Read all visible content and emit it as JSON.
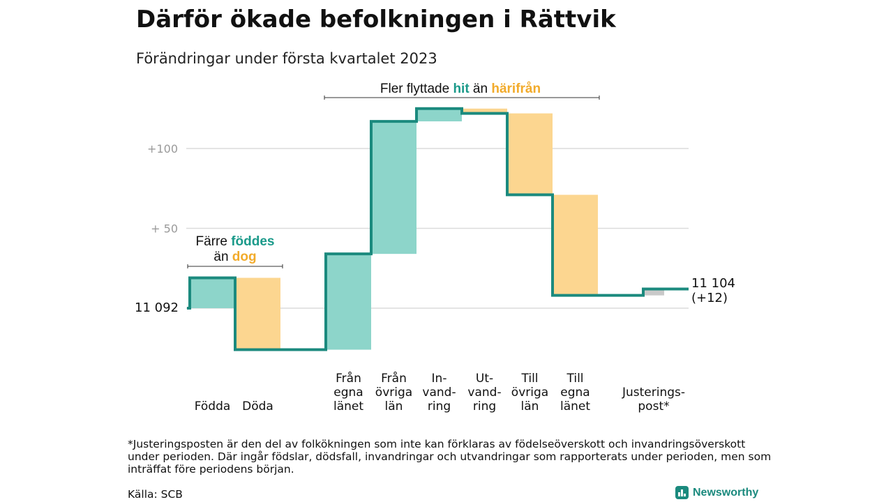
{
  "header": {
    "title": "Därför ökade befolkningen i Rättvik",
    "subtitle": "Förändringar under första kvartalet 2023"
  },
  "colors": {
    "increase": "#8dd5ca",
    "decrease": "#fcd690",
    "adjust": "#c9c9c9",
    "line": "#1b8a7e",
    "hit": "#1b9a8a",
    "harifran": "#f2ab2b",
    "grid": "#dcdcdc",
    "tick": "#9a9a9a"
  },
  "chart_data": {
    "type": "waterfall",
    "baseline": 11092,
    "yticks": [
      {
        "value": 50,
        "label": "+ 50"
      },
      {
        "value": 100,
        "label": "+100"
      }
    ],
    "ylim": [
      -30,
      130
    ],
    "steps": [
      {
        "label": [
          "Födda"
        ],
        "change": 19,
        "kind": "increase"
      },
      {
        "label": [
          "Döda"
        ],
        "change": -45,
        "kind": "decrease"
      },
      {
        "label": [
          "Från",
          "egna",
          "länet"
        ],
        "change": 60,
        "kind": "increase"
      },
      {
        "label": [
          "Från",
          "övriga",
          "län"
        ],
        "change": 83,
        "kind": "increase"
      },
      {
        "label": [
          "In-",
          "vand-",
          "ring"
        ],
        "change": 8,
        "kind": "increase"
      },
      {
        "label": [
          "Ut-",
          "vand-",
          "ring"
        ],
        "change": -3,
        "kind": "decrease"
      },
      {
        "label": [
          "Till",
          "övriga",
          "län"
        ],
        "change": -51,
        "kind": "decrease"
      },
      {
        "label": [
          "Till",
          "egna",
          "länet"
        ],
        "change": -63,
        "kind": "decrease"
      },
      {
        "label": [
          "Justerings-",
          "post*"
        ],
        "change": 4,
        "kind": "adjust"
      }
    ],
    "start_label": "11 092",
    "end_label": [
      "11 104",
      "(+12)"
    ],
    "annotations": {
      "births": {
        "line1": "Färre ",
        "line1_em": "föddes",
        "line2": "än ",
        "line2_em": "dog"
      },
      "moves": {
        "pre": "Fler flyttade ",
        "em1": "hit",
        "mid": " än ",
        "em2": "härifrån"
      }
    }
  },
  "footer": {
    "footnote": "*Justeringsposten är den del av folkökningen som inte kan förklaras av födelseöverskott och invandringsöverskott under perioden. Där ingår födslar, dödsfall, invandringar och utvandringar som rapporterats under perioden, men som inträffat före periodens början.",
    "source": "Källa: SCB",
    "logo": "Newsworthy"
  }
}
